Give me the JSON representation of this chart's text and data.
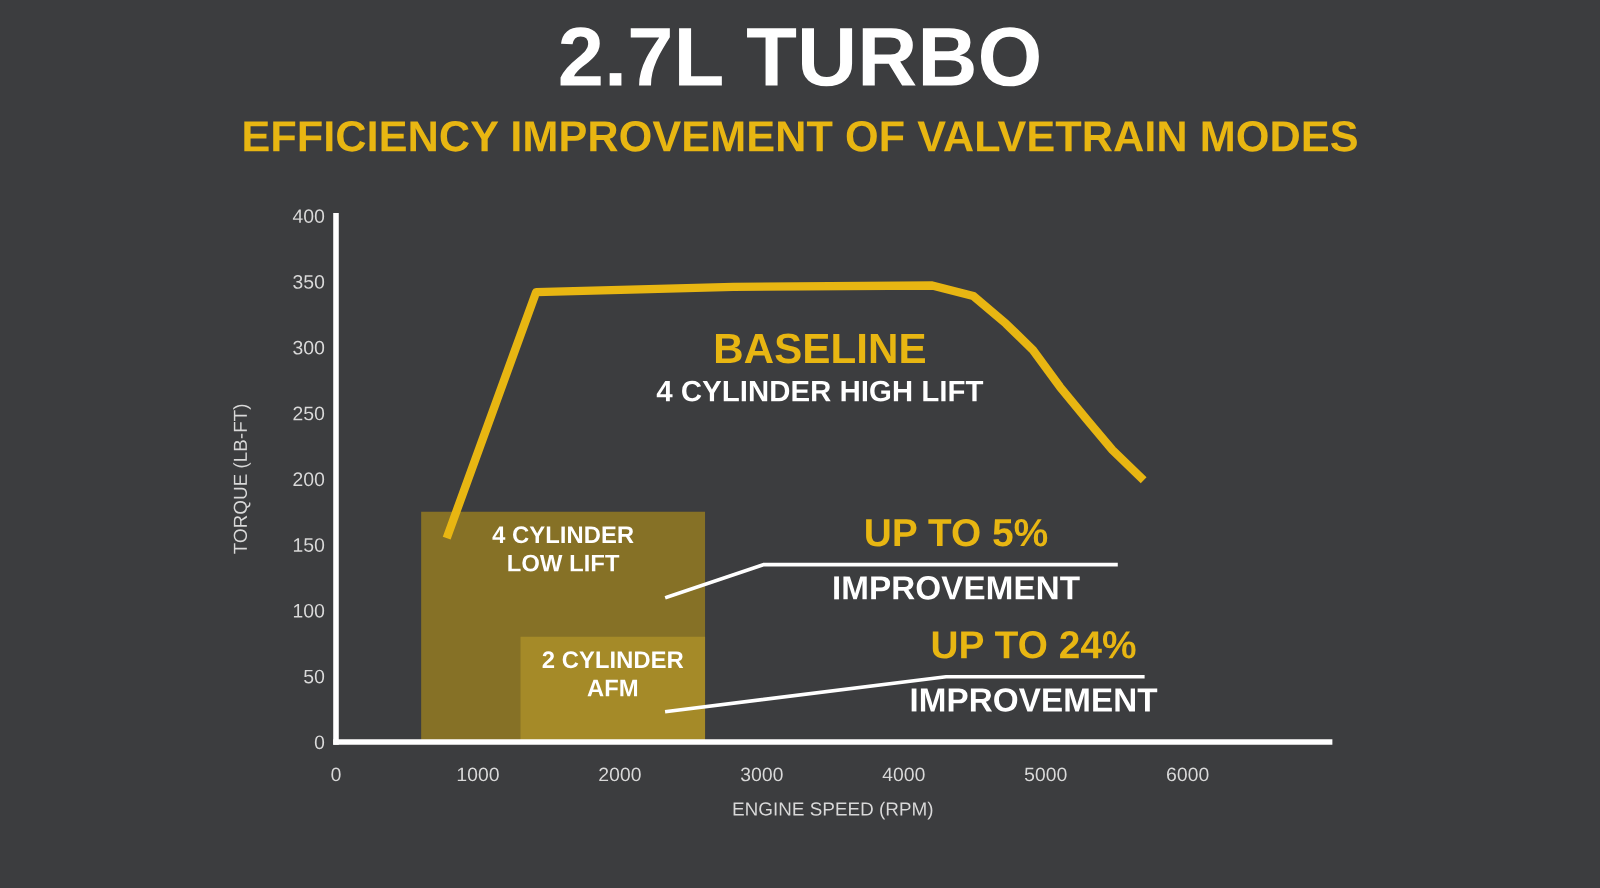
{
  "chart_data": {
    "type": "line",
    "title": "2.7L TURBO",
    "subtitle": "EFFICIENCY IMPROVEMENT OF VALVETRAIN MODES",
    "xlabel": "ENGINE SPEED (RPM)",
    "ylabel": "TORQUE (LB-FT)",
    "xlim": [
      0,
      7000
    ],
    "xticks": [
      0,
      1000,
      2000,
      3000,
      4000,
      5000,
      6000
    ],
    "ylim": [
      0,
      400
    ],
    "yticks": [
      0,
      50,
      100,
      150,
      200,
      250,
      300,
      350,
      400
    ],
    "series": [
      {
        "name": "BASELINE",
        "color": "#e8b612",
        "x": [
          780,
          1410,
          2800,
          4200,
          4490,
          4720,
          4910,
          5100,
          5290,
          5470,
          5690
        ],
        "values": [
          155,
          342,
          346,
          347,
          339,
          318,
          298,
          270,
          245,
          222,
          199
        ]
      },
      {
        "name": "4 CYLINDER\nLOW LIFT",
        "type": "area",
        "color": "#867126",
        "x": [
          600,
          2600
        ],
        "values": [
          175,
          175
        ]
      },
      {
        "name": "2 CYLINDER\nAFM",
        "type": "area",
        "color": "#a58a28",
        "x": [
          1300,
          2600
        ],
        "values": [
          80,
          80
        ]
      }
    ],
    "annotations": [
      "4 CYLINDER HIGH LIFT",
      "UP TO 5%",
      "IMPROVEMENT",
      "UP TO 24%",
      "IMPROVEMENT"
    ]
  }
}
